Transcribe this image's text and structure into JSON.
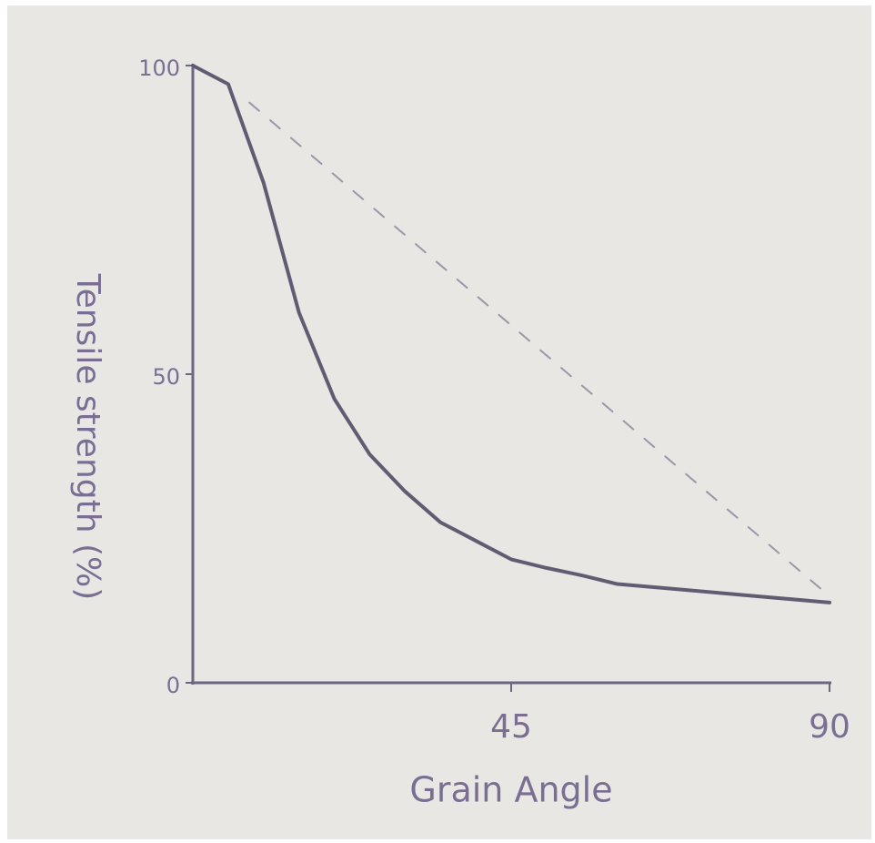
{
  "chart_data": {
    "type": "line",
    "x_label": "Grain Angle",
    "y_label": "Tensile strength (%)",
    "xlim": [
      0,
      90
    ],
    "xticks": [
      45,
      90
    ],
    "ylim": [
      0,
      100
    ],
    "yticks": [
      0,
      50,
      100
    ],
    "series": [
      {
        "style": "solid",
        "color": "#625c72",
        "x": [
          0,
          5,
          10,
          15,
          20,
          25,
          30,
          35,
          40,
          45,
          50,
          55,
          60,
          70,
          80,
          90
        ],
        "values": [
          100,
          97,
          81,
          60,
          46,
          37,
          31,
          26,
          23,
          20,
          18.6,
          17.4,
          16,
          15,
          14,
          13
        ]
      },
      {
        "style": "dashed",
        "color": "#9c96a8",
        "x": [
          8,
          89
        ],
        "values": [
          94,
          15
        ]
      }
    ]
  }
}
